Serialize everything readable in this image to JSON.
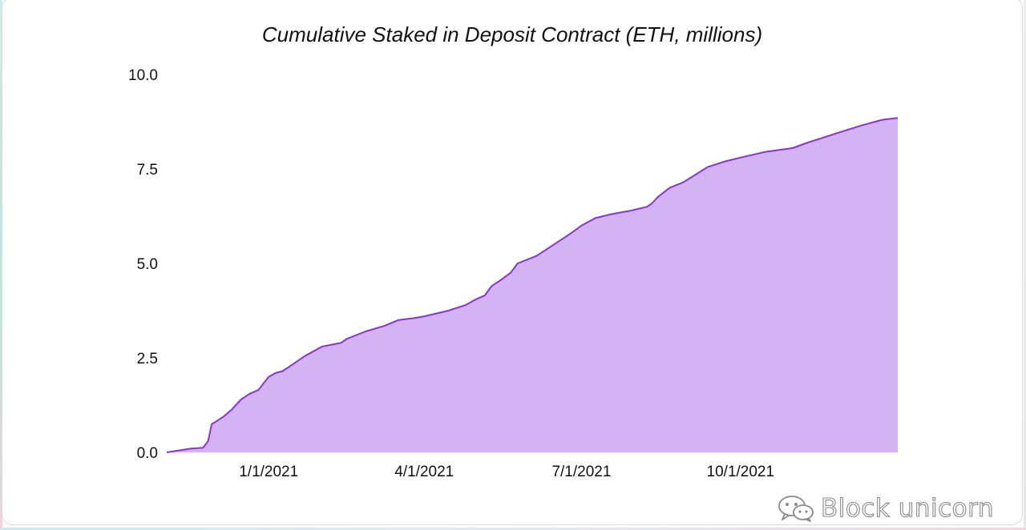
{
  "watermark": {
    "text": "Block unicorn",
    "icon": "wechat-icon"
  },
  "colors": {
    "area_fill": "#d3b3f3",
    "line": "#8a33d6"
  },
  "chart_data": {
    "type": "area",
    "title": "Cumulative Staked in Deposit Contract (ETH, millions)",
    "xlabel": "",
    "ylabel": "",
    "ylim": [
      0,
      10
    ],
    "xlim": [
      "2020-11-03",
      "2021-12-31"
    ],
    "grid": false,
    "y_ticks": [
      {
        "value": 0,
        "label": "0.0"
      },
      {
        "value": 2.5,
        "label": "2.5"
      },
      {
        "value": 5,
        "label": "5.0"
      },
      {
        "value": 7.5,
        "label": "7.5"
      },
      {
        "value": 10,
        "label": "10.0"
      }
    ],
    "x_ticks": [
      {
        "date": "2021-01-01",
        "label": "1/1/2021"
      },
      {
        "date": "2021-04-01",
        "label": "4/1/2021"
      },
      {
        "date": "2021-07-01",
        "label": "7/1/2021"
      },
      {
        "date": "2021-10-01",
        "label": "10/1/2021"
      }
    ],
    "series": [
      {
        "x": [
          "2020-11-03",
          "2020-11-17",
          "2020-11-24",
          "2020-11-27",
          "2020-11-29",
          "2020-12-01",
          "2020-12-06",
          "2020-12-11",
          "2020-12-16",
          "2020-12-21",
          "2020-12-26",
          "2021-01-01",
          "2021-01-05",
          "2021-01-09",
          "2021-01-14",
          "2021-01-22",
          "2021-02-01",
          "2021-02-12",
          "2021-02-15",
          "2021-02-26",
          "2021-03-09",
          "2021-03-17",
          "2021-03-26",
          "2021-04-01",
          "2021-04-15",
          "2021-04-25",
          "2021-05-01",
          "2021-05-06",
          "2021-05-10",
          "2021-05-15",
          "2021-05-21",
          "2021-05-25",
          "2021-06-05",
          "2021-06-15",
          "2021-06-25",
          "2021-07-01",
          "2021-07-09",
          "2021-07-18",
          "2021-07-30",
          "2021-08-08",
          "2021-08-11",
          "2021-08-14",
          "2021-08-21",
          "2021-08-29",
          "2021-09-05",
          "2021-09-12",
          "2021-09-22",
          "2021-10-01",
          "2021-10-15",
          "2021-10-31",
          "2021-11-09",
          "2021-11-26",
          "2021-12-10",
          "2021-12-22",
          "2021-12-31"
        ],
        "y": [
          0.0,
          0.1,
          0.12,
          0.3,
          0.75,
          0.8,
          0.95,
          1.15,
          1.4,
          1.55,
          1.65,
          2.0,
          2.1,
          2.15,
          2.3,
          2.55,
          2.8,
          2.9,
          3.0,
          3.2,
          3.35,
          3.5,
          3.55,
          3.6,
          3.75,
          3.9,
          4.05,
          4.15,
          4.4,
          4.55,
          4.75,
          5.0,
          5.2,
          5.5,
          5.8,
          6.0,
          6.2,
          6.3,
          6.4,
          6.5,
          6.6,
          6.75,
          7.0,
          7.15,
          7.35,
          7.55,
          7.7,
          7.8,
          7.95,
          8.05,
          8.2,
          8.45,
          8.65,
          8.8,
          8.85
        ]
      }
    ]
  }
}
